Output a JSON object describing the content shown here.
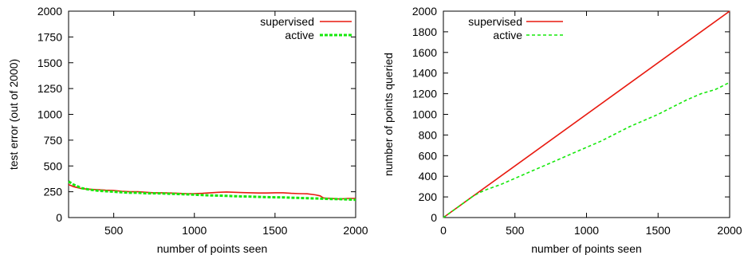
{
  "colors": {
    "supervised": "#e8190f",
    "active": "#16e80c",
    "axis": "#000000"
  },
  "chart_data": [
    {
      "type": "line",
      "xlabel": "number of points seen",
      "ylabel": "test error (out of 2000)",
      "xlim": [
        220,
        2000
      ],
      "ylim": [
        0,
        2000
      ],
      "xticks": [
        500,
        1000,
        1500,
        2000
      ],
      "yticks": [
        0,
        250,
        500,
        750,
        1000,
        1250,
        1500,
        1750,
        2000
      ],
      "grid": false,
      "legend": "top-right",
      "series": [
        {
          "name": "supervised",
          "style": "solid",
          "x": [
            220,
            250,
            300,
            350,
            400,
            450,
            500,
            550,
            600,
            650,
            700,
            750,
            800,
            850,
            900,
            950,
            1000,
            1050,
            1100,
            1150,
            1200,
            1250,
            1300,
            1350,
            1400,
            1450,
            1500,
            1550,
            1600,
            1650,
            1700,
            1750,
            1780,
            1800,
            1850,
            1900,
            1950,
            2000
          ],
          "values": [
            320,
            300,
            280,
            275,
            270,
            265,
            262,
            255,
            250,
            250,
            245,
            240,
            240,
            238,
            235,
            232,
            232,
            235,
            240,
            245,
            248,
            245,
            242,
            240,
            238,
            238,
            240,
            240,
            235,
            232,
            230,
            220,
            210,
            190,
            185,
            180,
            185,
            185
          ]
        },
        {
          "name": "active",
          "style": "dashed",
          "x": [
            220,
            250,
            300,
            350,
            400,
            450,
            500,
            550,
            600,
            650,
            700,
            750,
            800,
            850,
            900,
            950,
            1000,
            1050,
            1100,
            1150,
            1200,
            1250,
            1300,
            1350,
            1400,
            1450,
            1500,
            1550,
            1600,
            1650,
            1700,
            1750,
            1800,
            1850,
            1900,
            1950,
            2000
          ],
          "values": [
            350,
            320,
            285,
            270,
            260,
            255,
            250,
            245,
            240,
            240,
            235,
            235,
            233,
            230,
            228,
            225,
            222,
            218,
            215,
            212,
            210,
            207,
            205,
            203,
            200,
            198,
            196,
            195,
            192,
            190,
            188,
            185,
            182,
            180,
            178,
            175,
            172
          ]
        }
      ]
    },
    {
      "type": "line",
      "xlabel": "number of points seen",
      "ylabel": "number of points queried",
      "xlim": [
        0,
        2000
      ],
      "ylim": [
        0,
        2000
      ],
      "xticks": [
        0,
        500,
        1000,
        1500,
        2000
      ],
      "yticks": [
        0,
        200,
        400,
        600,
        800,
        1000,
        1200,
        1400,
        1600,
        1800,
        2000
      ],
      "grid": false,
      "legend": "top-left",
      "series": [
        {
          "name": "supervised",
          "style": "solid",
          "x": [
            0,
            2000
          ],
          "values": [
            0,
            2000
          ]
        },
        {
          "name": "active",
          "style": "dashed",
          "x": [
            0,
            100,
            200,
            250,
            300,
            400,
            500,
            600,
            700,
            800,
            900,
            1000,
            1100,
            1200,
            1300,
            1400,
            1500,
            1600,
            1700,
            1800,
            1900,
            2000
          ],
          "values": [
            0,
            100,
            200,
            240,
            270,
            320,
            380,
            440,
            500,
            560,
            620,
            680,
            740,
            810,
            880,
            940,
            1000,
            1070,
            1140,
            1200,
            1240,
            1310
          ]
        }
      ]
    }
  ]
}
